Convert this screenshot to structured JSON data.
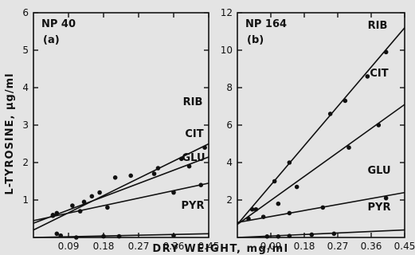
{
  "figure": {
    "y_axis_label": "L-TYROSINE, µg/ml",
    "x_axis_label": "DRY WEIGHT, mg/ml"
  },
  "chart_data": [
    {
      "type": "scatter",
      "panel_label": "NP 40",
      "panel_letter": "(a)",
      "xlim": [
        0,
        0.45
      ],
      "ylim": [
        0,
        6
      ],
      "x_ticks": [
        0.09,
        0.18,
        0.27,
        0.36,
        0.45
      ],
      "x_tick_labels": [
        "0.09",
        "0.18",
        "0.27",
        "0.36",
        "0.45"
      ],
      "y_ticks": [
        1,
        2,
        3,
        4,
        5,
        6
      ],
      "y_tick_labels": [
        "1",
        "2",
        "3",
        "4",
        "5",
        "6"
      ],
      "series": [
        {
          "name": "RIB",
          "points": [
            [
              0.05,
              0.58
            ],
            [
              0.1,
              0.85
            ],
            [
              0.15,
              1.1
            ],
            [
              0.21,
              1.6
            ],
            [
              0.32,
              1.85
            ],
            [
              0.38,
              2.1
            ],
            [
              0.44,
              2.4
            ]
          ],
          "fit": [
            [
              0.0,
              0.2
            ],
            [
              0.45,
              2.5
            ]
          ]
        },
        {
          "name": "CIT",
          "points": [
            [
              0.06,
              0.65
            ],
            [
              0.13,
              0.95
            ],
            [
              0.17,
              1.2
            ],
            [
              0.25,
              1.65
            ],
            [
              0.31,
              1.7
            ],
            [
              0.4,
              1.9
            ]
          ],
          "fit": [
            [
              0.0,
              0.38
            ],
            [
              0.45,
              2.15
            ]
          ]
        },
        {
          "name": "GLU",
          "points": [
            [
              0.05,
              0.6
            ],
            [
              0.12,
              0.7
            ],
            [
              0.19,
              0.8
            ],
            [
              0.36,
              1.2
            ],
            [
              0.43,
              1.4
            ]
          ],
          "fit": [
            [
              0.0,
              0.45
            ],
            [
              0.45,
              1.45
            ]
          ]
        },
        {
          "name": "PYR",
          "points": [
            [
              0.06,
              0.1
            ],
            [
              0.07,
              0.05
            ],
            [
              0.11,
              0.0
            ],
            [
              0.18,
              0.03
            ],
            [
              0.22,
              0.03
            ],
            [
              0.36,
              0.05
            ]
          ],
          "fit": [
            [
              0.0,
              0.0
            ],
            [
              0.45,
              0.1
            ]
          ]
        }
      ]
    },
    {
      "type": "scatter",
      "panel_label": "NP 164",
      "panel_letter": "(b)",
      "xlim": [
        0,
        0.45
      ],
      "ylim": [
        0,
        12
      ],
      "x_ticks": [
        0.09,
        0.18,
        0.27,
        0.36,
        0.45
      ],
      "x_tick_labels": [
        "0.09",
        "0.18",
        "0.27",
        "0.36",
        "0.45"
      ],
      "y_ticks": [
        2,
        4,
        6,
        8,
        10,
        12
      ],
      "y_tick_labels": [
        "2",
        "4",
        "6",
        "8",
        "10",
        "12"
      ],
      "series": [
        {
          "name": "RIB",
          "points": [
            [
              0.04,
              1.5
            ],
            [
              0.1,
              3.0
            ],
            [
              0.14,
              4.0
            ],
            [
              0.25,
              6.6
            ],
            [
              0.29,
              7.3
            ],
            [
              0.35,
              8.6
            ],
            [
              0.4,
              9.9
            ]
          ],
          "fit": [
            [
              0.0,
              0.7
            ],
            [
              0.45,
              11.2
            ]
          ]
        },
        {
          "name": "CIT",
          "points": [
            [
              0.05,
              1.5
            ],
            [
              0.11,
              1.8
            ],
            [
              0.16,
              2.7
            ],
            [
              0.3,
              4.8
            ],
            [
              0.38,
              6.0
            ]
          ],
          "fit": [
            [
              0.0,
              0.7
            ],
            [
              0.45,
              7.1
            ]
          ]
        },
        {
          "name": "GLU",
          "points": [
            [
              0.03,
              1.0
            ],
            [
              0.07,
              1.1
            ],
            [
              0.14,
              1.3
            ],
            [
              0.23,
              1.6
            ],
            [
              0.4,
              2.1
            ]
          ],
          "fit": [
            [
              0.0,
              0.8
            ],
            [
              0.45,
              2.4
            ]
          ]
        },
        {
          "name": "PYR",
          "points": [
            [
              0.08,
              0.05
            ],
            [
              0.11,
              0.05
            ],
            [
              0.14,
              0.08
            ],
            [
              0.2,
              0.15
            ],
            [
              0.26,
              0.2
            ]
          ],
          "fit": [
            [
              0.0,
              0.0
            ],
            [
              0.45,
              0.4
            ]
          ]
        }
      ]
    }
  ]
}
